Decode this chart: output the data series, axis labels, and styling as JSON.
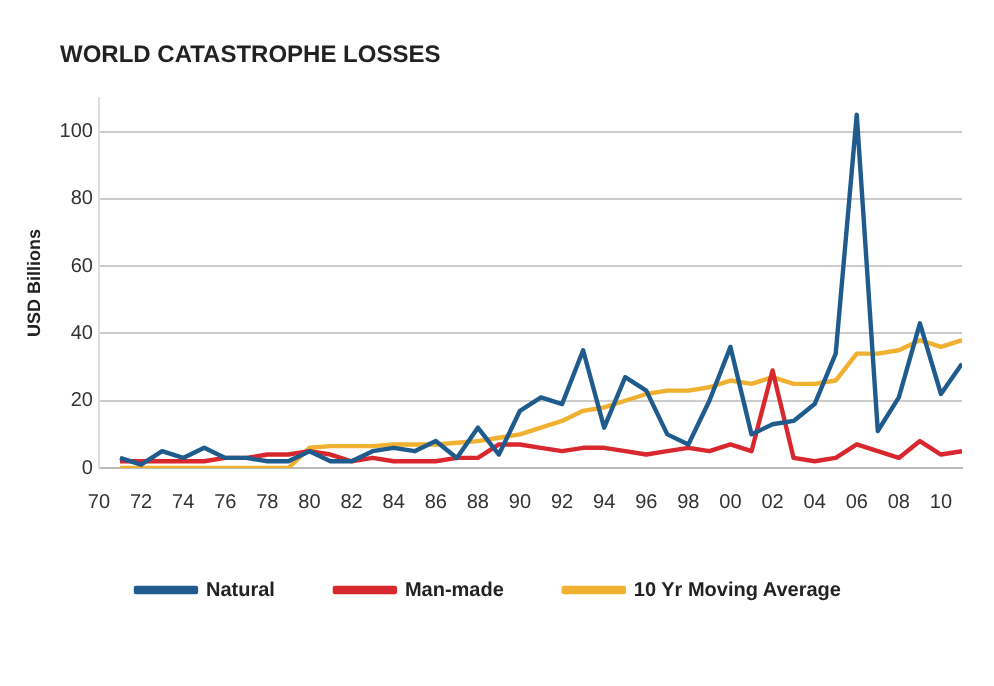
{
  "chart_data": {
    "type": "line",
    "title": "WORLD CATASTROPHE LOSSES",
    "ylabel": "USD Billions",
    "x": [
      1971,
      1972,
      1973,
      1974,
      1975,
      1976,
      1977,
      1978,
      1979,
      1980,
      1981,
      1982,
      1983,
      1984,
      1985,
      1986,
      1987,
      1988,
      1989,
      1990,
      1991,
      1992,
      1993,
      1994,
      1995,
      1996,
      1997,
      1998,
      1999,
      2000,
      2001,
      2002,
      2003,
      2004,
      2005,
      2006,
      2007,
      2008,
      2009,
      2010,
      2011
    ],
    "series": [
      {
        "name": "Natural",
        "color": "#1f5b8c",
        "values": [
          3,
          1,
          5,
          3,
          6,
          3,
          3,
          2,
          2,
          5,
          2,
          2,
          5,
          6,
          5,
          8,
          3,
          12,
          4,
          17,
          21,
          19,
          35,
          12,
          27,
          23,
          10,
          7,
          20,
          36,
          10,
          13,
          14,
          19,
          34,
          105,
          11,
          21,
          43,
          22,
          31
        ]
      },
      {
        "name": "Man-made",
        "color": "#d9272e",
        "values": [
          2,
          2,
          2,
          2,
          2,
          3,
          3,
          4,
          4,
          5,
          4,
          2,
          3,
          2,
          2,
          2,
          3,
          3,
          7,
          7,
          6,
          5,
          6,
          6,
          5,
          4,
          5,
          6,
          5,
          7,
          5,
          29,
          3,
          2,
          3,
          7,
          5,
          3,
          8,
          4,
          5
        ]
      },
      {
        "name": "10 Yr Moving Average",
        "color": "#f0b030",
        "values": [
          0,
          0,
          0,
          0,
          0,
          0,
          0,
          0,
          0,
          6,
          6.5,
          6.5,
          6.5,
          7,
          7,
          7,
          7.5,
          8,
          9,
          10,
          12,
          14,
          17,
          18,
          20,
          22,
          23,
          23,
          24,
          26,
          25,
          27,
          25,
          25,
          26,
          34,
          34,
          35,
          38,
          36,
          38
        ]
      }
    ],
    "xlim": [
      1970,
      2011
    ],
    "xticks": [
      {
        "value": 1970,
        "label": "70"
      },
      {
        "value": 1972,
        "label": "72"
      },
      {
        "value": 1974,
        "label": "74"
      },
      {
        "value": 1976,
        "label": "76"
      },
      {
        "value": 1978,
        "label": "78"
      },
      {
        "value": 1980,
        "label": "80"
      },
      {
        "value": 1982,
        "label": "82"
      },
      {
        "value": 1984,
        "label": "84"
      },
      {
        "value": 1986,
        "label": "86"
      },
      {
        "value": 1988,
        "label": "88"
      },
      {
        "value": 1990,
        "label": "90"
      },
      {
        "value": 1992,
        "label": "92"
      },
      {
        "value": 1994,
        "label": "94"
      },
      {
        "value": 1996,
        "label": "96"
      },
      {
        "value": 1998,
        "label": "98"
      },
      {
        "value": 2000,
        "label": "00"
      },
      {
        "value": 2002,
        "label": "02"
      },
      {
        "value": 2004,
        "label": "04"
      },
      {
        "value": 2006,
        "label": "06"
      },
      {
        "value": 2008,
        "label": "08"
      },
      {
        "value": 2010,
        "label": "10"
      }
    ],
    "ylim": [
      0,
      110
    ],
    "yticks": [
      0,
      20,
      40,
      60,
      80,
      100
    ],
    "grid": "y",
    "legend": "bottom",
    "marker": "none",
    "line_style": "solid"
  }
}
